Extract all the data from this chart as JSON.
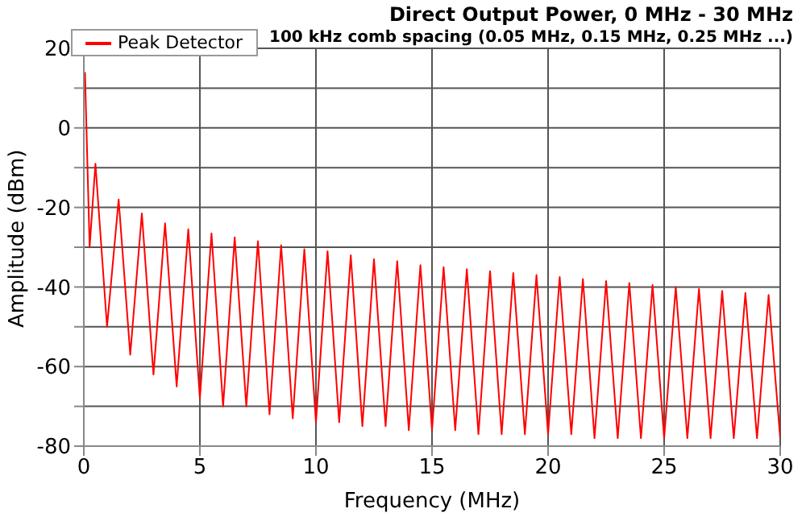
{
  "chart_data": {
    "type": "line",
    "title": "Direct Output Power, 0 MHz - 30 MHz",
    "subtitle": "100 kHz comb spacing (0.05 MHz, 0.15 MHz, 0.25 MHz ...)",
    "xlabel": "Frequency (MHz)",
    "ylabel": "Amplitude (dBm)",
    "xlim": [
      0,
      30
    ],
    "xticks": [
      0,
      5,
      10,
      15,
      20,
      25,
      30
    ],
    "ylim": [
      -80,
      20
    ],
    "yticks": [
      -80,
      {
        "value": -70,
        "label": null
      },
      -60,
      {
        "value": -50,
        "label": null
      },
      -40,
      {
        "value": -30,
        "label": null
      },
      -20,
      {
        "value": -10,
        "label": null
      },
      0,
      {
        "value": 10,
        "label": null
      },
      20
    ],
    "grid": true,
    "legend": "top left",
    "series": [
      {
        "name": "Peak Detector",
        "color": "#ff0000",
        "x": [
          0.05,
          0.25,
          0.5,
          1,
          1.5,
          2,
          2.5,
          3,
          3.5,
          4,
          4.5,
          5,
          5.5,
          6,
          6.5,
          7,
          7.5,
          8,
          8.5,
          9,
          9.5,
          10,
          10.5,
          11,
          11.5,
          12,
          12.5,
          13,
          13.5,
          14,
          14.5,
          15,
          15.5,
          16,
          16.5,
          17,
          17.5,
          18,
          18.5,
          19,
          19.5,
          20,
          20.5,
          21,
          21.5,
          22,
          22.5,
          23,
          23.5,
          24,
          24.5,
          25,
          25.5,
          26,
          26.5,
          27,
          27.5,
          28,
          28.5,
          29,
          29.5,
          30
        ],
        "values": [
          14,
          -30,
          -9,
          -50,
          -18,
          -57,
          -21.5,
          -62,
          -24,
          -65,
          -25.5,
          -68,
          -26.5,
          -70,
          -27.5,
          -70,
          -28.5,
          -72,
          -29.5,
          -73,
          -30.5,
          -74,
          -31,
          -74,
          -32,
          -75,
          -33,
          -75,
          -33.5,
          -76,
          -34.5,
          -76,
          -35,
          -76,
          -35.5,
          -77,
          -36,
          -77,
          -36.5,
          -77,
          -37,
          -77,
          -37.5,
          -77,
          -38,
          -78,
          -38.5,
          -78,
          -39,
          -78,
          -39.5,
          -78,
          -40,
          -78,
          -40.5,
          -78,
          -41,
          -78,
          -41.5,
          -78,
          -42,
          -78
        ]
      }
    ]
  }
}
